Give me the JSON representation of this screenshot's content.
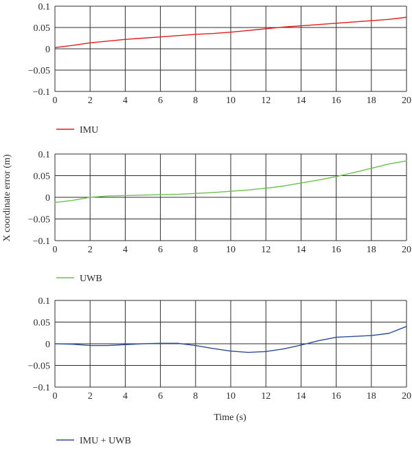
{
  "ylabel": "X coordinate error (m)",
  "xlabel": "Time (s)",
  "chart_data": [
    {
      "type": "line",
      "xlim": [
        0,
        20
      ],
      "ylim": [
        -0.1,
        0.1
      ],
      "grid": true,
      "legend_position": "below",
      "x_ticks": [
        "0",
        "2",
        "4",
        "6",
        "8",
        "10",
        "12",
        "14",
        "16",
        "18",
        "20"
      ],
      "y_ticks": [
        "0.1",
        "0.05",
        "0",
        "−0.05",
        "−0.1"
      ],
      "series": [
        {
          "name": "IMU",
          "color": "#e31a1c",
          "x": [
            0,
            1,
            2,
            3,
            4,
            5,
            6,
            7,
            8,
            9,
            10,
            11,
            12,
            13,
            14,
            15,
            16,
            17,
            18,
            19,
            20
          ],
          "y": [
            0.003,
            0.008,
            0.014,
            0.018,
            0.022,
            0.025,
            0.028,
            0.031,
            0.034,
            0.036,
            0.039,
            0.043,
            0.047,
            0.051,
            0.054,
            0.057,
            0.06,
            0.063,
            0.066,
            0.069,
            0.074
          ]
        }
      ]
    },
    {
      "type": "line",
      "xlim": [
        0,
        20
      ],
      "ylim": [
        -0.1,
        0.1
      ],
      "grid": true,
      "legend_position": "below",
      "x_ticks": [
        "0",
        "2",
        "4",
        "6",
        "8",
        "10",
        "12",
        "14",
        "16",
        "18",
        "20"
      ],
      "y_ticks": [
        "0.1",
        "0.05",
        "0",
        "−0.05",
        "−0.1"
      ],
      "series": [
        {
          "name": "UWB",
          "color": "#6cc04a",
          "x": [
            0,
            1,
            2,
            3,
            4,
            5,
            6,
            7,
            8,
            9,
            10,
            11,
            12,
            13,
            14,
            15,
            16,
            17,
            18,
            19,
            20
          ],
          "y": [
            -0.012,
            -0.007,
            0.0,
            0.003,
            0.004,
            0.005,
            0.006,
            0.007,
            0.009,
            0.011,
            0.014,
            0.017,
            0.021,
            0.026,
            0.033,
            0.04,
            0.048,
            0.057,
            0.067,
            0.077,
            0.084
          ]
        }
      ]
    },
    {
      "type": "line",
      "xlim": [
        0,
        20
      ],
      "ylim": [
        -0.1,
        0.1
      ],
      "grid": true,
      "legend_position": "below",
      "x_ticks": [
        "0",
        "2",
        "4",
        "6",
        "8",
        "10",
        "12",
        "14",
        "16",
        "18",
        "20"
      ],
      "y_ticks": [
        "0.1",
        "0.05",
        "0",
        "−0.05",
        "−0.1"
      ],
      "series": [
        {
          "name": "IMU + UWB",
          "color": "#2b4a9a",
          "x": [
            0,
            1,
            2,
            3,
            4,
            5,
            6,
            7,
            8,
            9,
            10,
            11,
            12,
            13,
            14,
            15,
            16,
            17,
            18,
            19,
            20
          ],
          "y": [
            0.0,
            -0.001,
            -0.004,
            -0.004,
            -0.002,
            0.0,
            0.001,
            0.001,
            -0.004,
            -0.011,
            -0.017,
            -0.02,
            -0.018,
            -0.012,
            -0.003,
            0.007,
            0.015,
            0.017,
            0.019,
            0.024,
            0.04
          ]
        }
      ]
    }
  ]
}
